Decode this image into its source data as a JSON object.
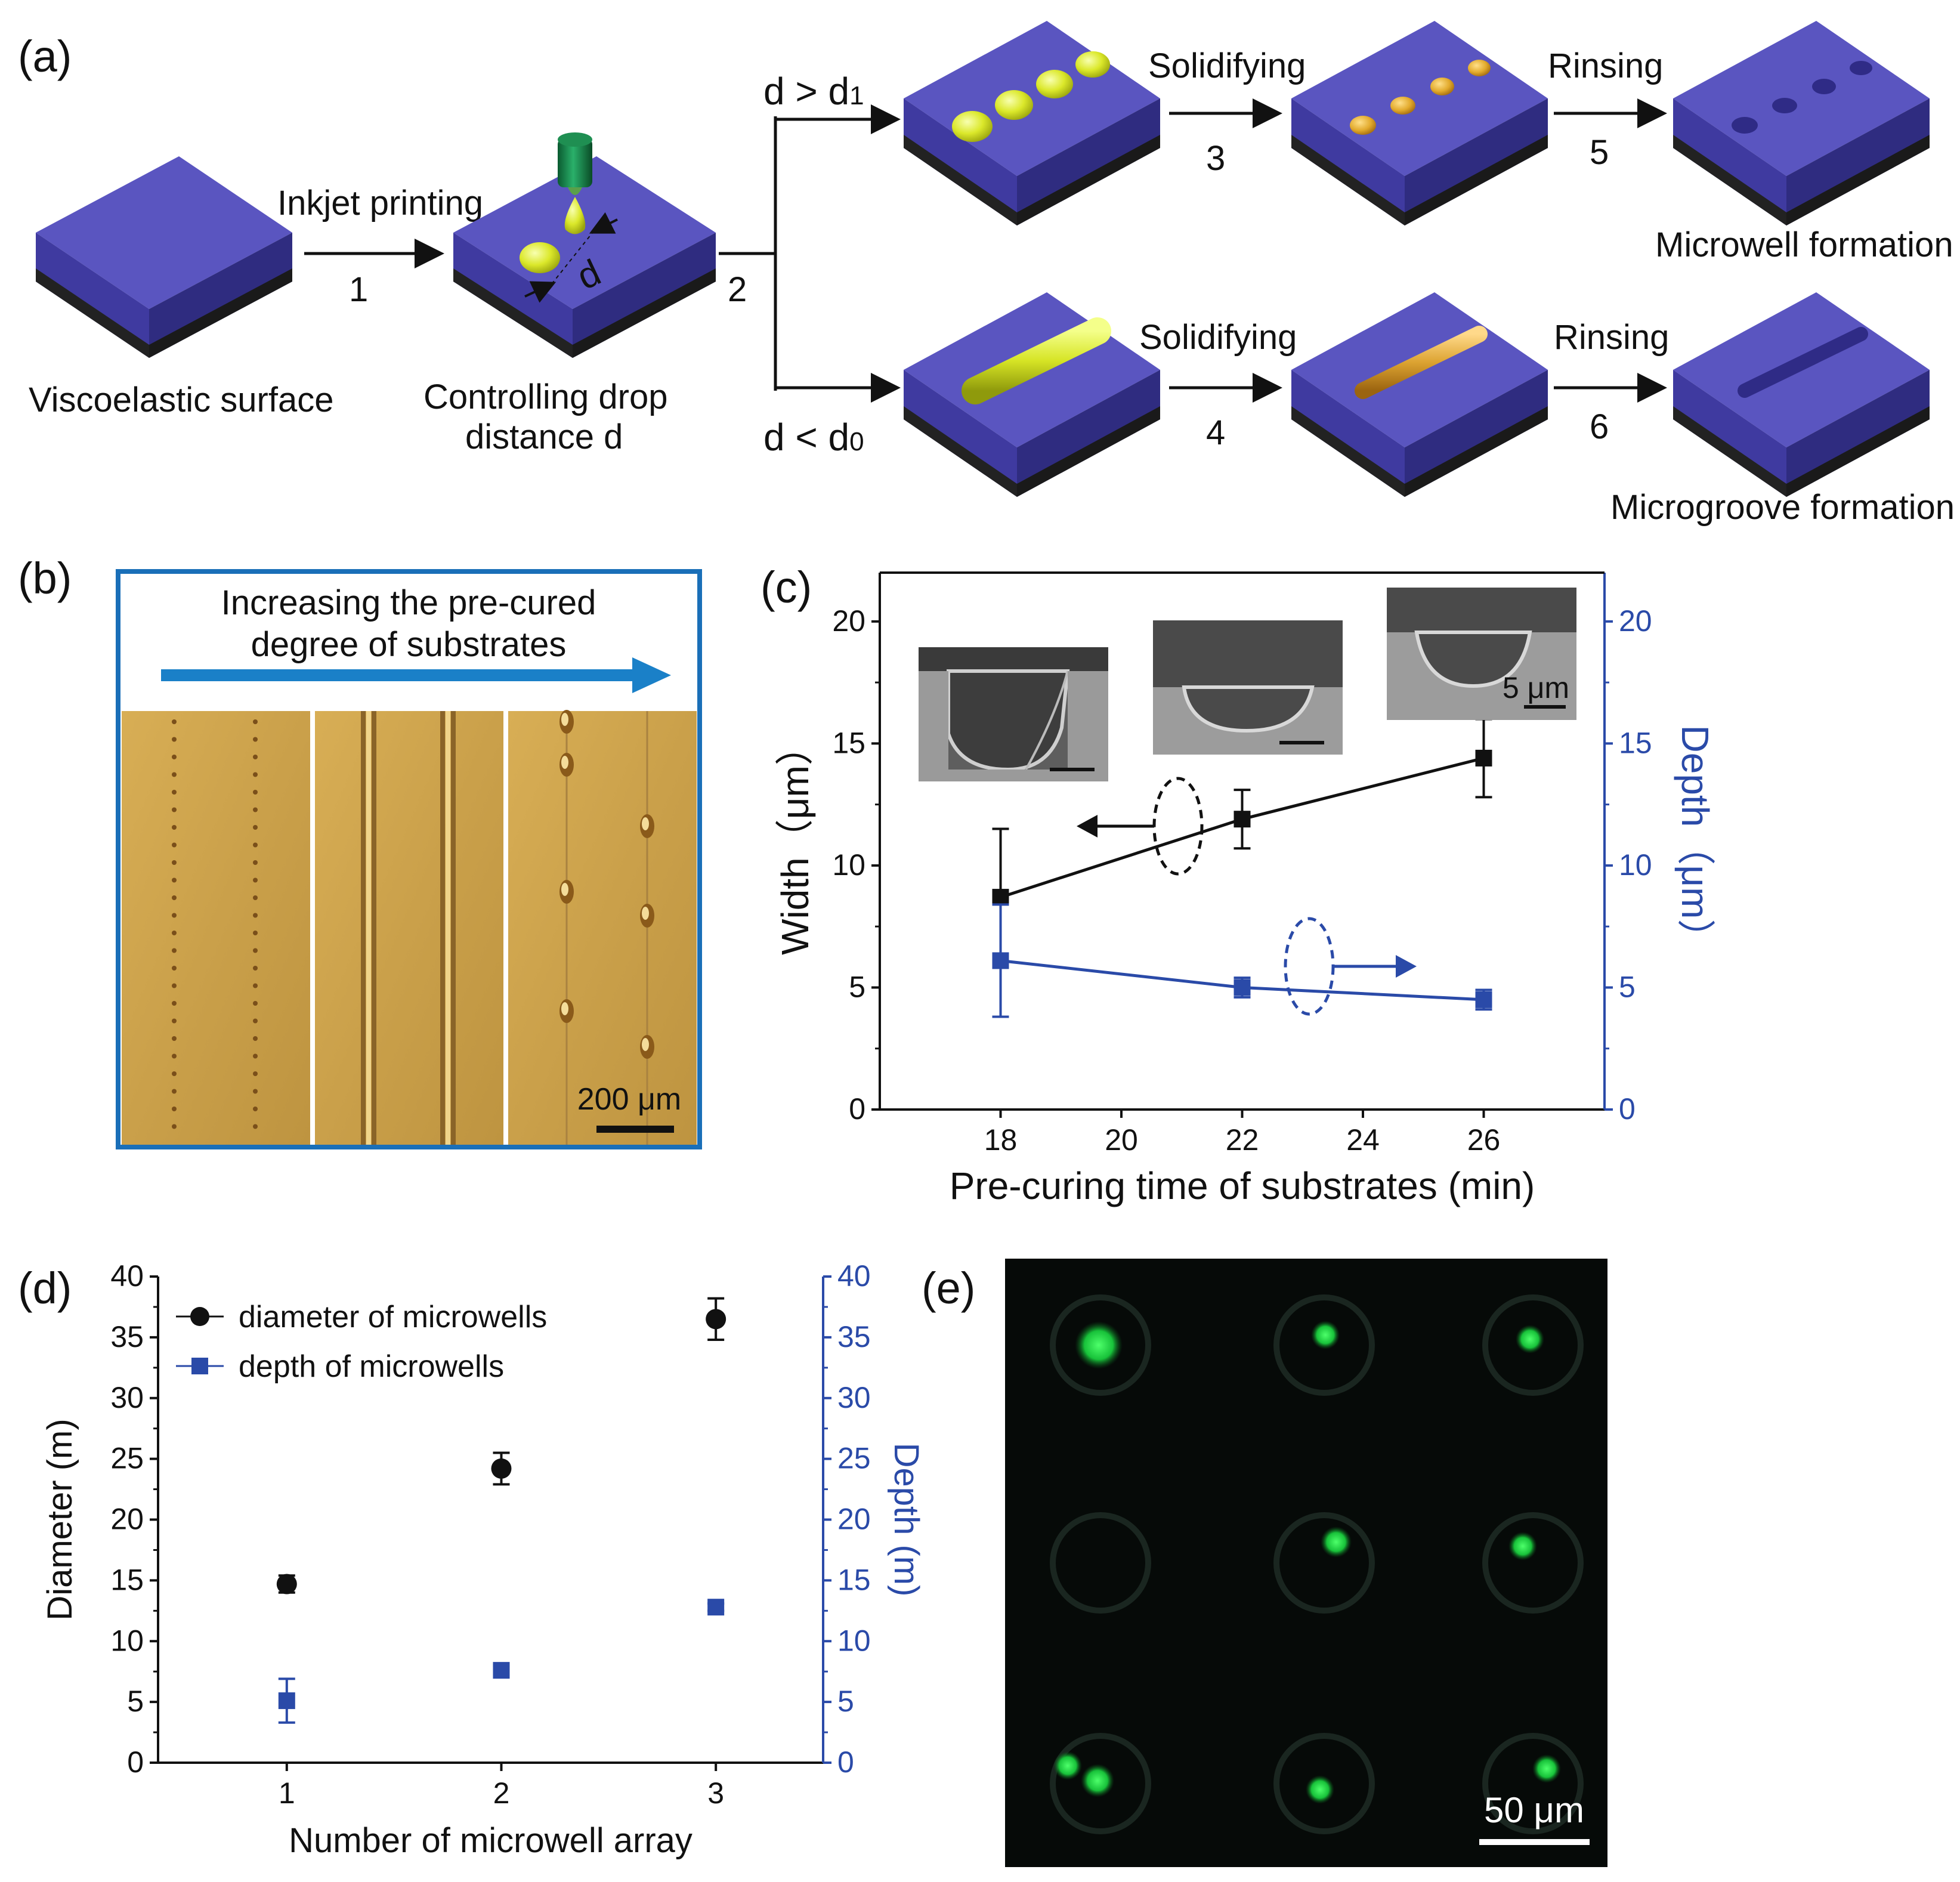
{
  "figure": {
    "panel_labels": [
      "(a)",
      "(b)",
      "(c)",
      "(d)",
      "(e)"
    ],
    "a": {
      "viscoelastic_surface": "Viscoelastic surface",
      "inkjet_printing": "Inkjet printing",
      "step1": "1",
      "controlling_drop_1": "Controlling drop",
      "controlling_drop_2": "distance d",
      "d_symbol": "d",
      "step2": "2",
      "d_gt": "d > d",
      "d_gt_sub": "1",
      "d_lt": "d < d",
      "d_lt_sub": "0",
      "solidifying_top": "Solidifying",
      "solidifying_bottom": "Solidifying",
      "step3": "3",
      "step4": "4",
      "rinsing_top": "Rinsing",
      "rinsing_bottom": "Rinsing",
      "step5": "5",
      "step6": "6",
      "microwell_formation": "Microwell formation",
      "microgroove_formation": "Microgroove formation",
      "colors": {
        "top": "#5a55c0",
        "side_front": "#4a46ad",
        "side_right": "#3b3891",
        "base": "#2a2a2a",
        "drop": "#e3ee2a",
        "solid": "#e6b030"
      }
    },
    "b": {
      "title_1": "Increasing the pre-cured",
      "title_2": "degree of substrates",
      "scale": "200 μm"
    },
    "c": {
      "scale_inset": "5 μm",
      "ylabel_left": "Width（μm）",
      "ylabel_right": "Depth（μm）",
      "xlabel": "Pre-curing time of substrates (min)"
    },
    "d": {
      "legend_1": "diameter of microwells",
      "legend_2": "depth of microwells",
      "ylabel_left": "Diameter (m)",
      "ylabel_right": "Depth (m)",
      "xlabel": "Number of microwell array"
    },
    "e": {
      "scale": "50 μm"
    }
  },
  "chart_data": [
    {
      "id": "c",
      "type": "line",
      "x": [
        18,
        22,
        26
      ],
      "xlim": [
        16,
        28
      ],
      "xticks": [
        18,
        20,
        22,
        24,
        26
      ],
      "ylim": [
        0,
        22
      ],
      "yticks": [
        0,
        5,
        10,
        15,
        20
      ],
      "xlabel": "Pre-curing time of substrates (min)",
      "ylabel": "Width（μm）",
      "y2label": "Depth（μm）",
      "series": [
        {
          "axis": "left",
          "color": "#111111",
          "marker": "square",
          "values": [
            8.7,
            11.9,
            14.4
          ],
          "errors": [
            2.8,
            1.2,
            1.6
          ]
        },
        {
          "axis": "right",
          "color": "#2a4aa8",
          "marker": "square",
          "values": [
            6.1,
            5.0,
            4.5
          ],
          "errors": [
            2.3,
            0.4,
            0.4
          ]
        }
      ],
      "grid": false
    },
    {
      "id": "d",
      "type": "scatter",
      "x": [
        1,
        2,
        3
      ],
      "xlim": [
        0.4,
        3.5
      ],
      "xticks": [
        1,
        2,
        3
      ],
      "ylim": [
        0,
        40
      ],
      "yticks": [
        0,
        5,
        10,
        15,
        20,
        25,
        30,
        35,
        40
      ],
      "xlabel": "Number of microwell array",
      "ylabel": "Diameter (m)",
      "y2label": "Depth (m)",
      "series": [
        {
          "name": "diameter of microwells",
          "axis": "left",
          "color": "#111111",
          "marker": "circle",
          "values": [
            14.7,
            24.2,
            36.5
          ],
          "errors": [
            0.7,
            1.3,
            1.7
          ]
        },
        {
          "name": "depth of microwells",
          "axis": "right",
          "color": "#2a4aa8",
          "marker": "square",
          "values": [
            5.1,
            7.6,
            12.8
          ],
          "errors": [
            1.8,
            0.4,
            0.3
          ]
        }
      ],
      "legend": "top-left",
      "grid": false
    }
  ]
}
